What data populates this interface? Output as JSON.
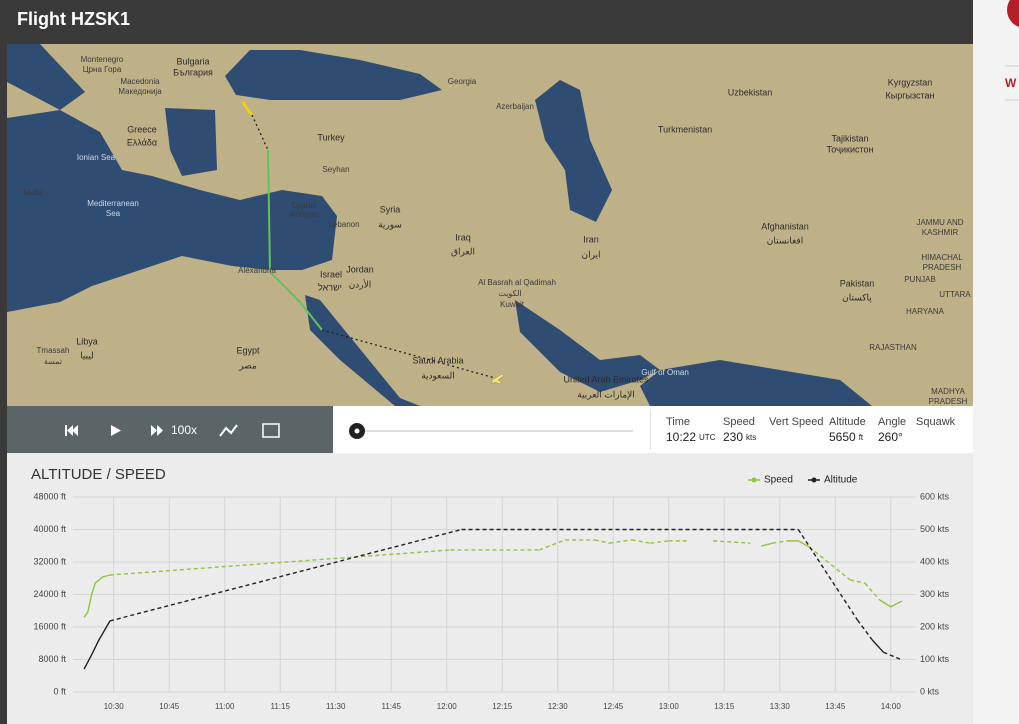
{
  "header": {
    "title": "Flight HZSK1"
  },
  "map": {
    "labels": [
      "Montenegro",
      "Црна Гора",
      "Bulgaria",
      "България",
      "Macedonia",
      "Македонија",
      "Greece",
      "Ελλάδα",
      "Ionian Sea",
      "Malta",
      "Mediterranean",
      "Sea",
      "Turkey",
      "Seyhan",
      "Cyprus",
      "Κύπρος",
      "Lebanon",
      "Syria",
      "سورية",
      "Iraq",
      "العراق",
      "Israel",
      "ישראל",
      "Jordan",
      "الأردن",
      "Georgia",
      "Azerbaijan",
      "Iran",
      "ایران",
      "Al Basrah al Qadimah",
      "الكويت",
      "Kuwait",
      "Turkmenistan",
      "Uzbekistan",
      "Kyrgyzstan",
      "Кыргызстан",
      "Tajikistan",
      "Тоҷикистон",
      "Afghanistan",
      "افغانستان",
      "Pakistan",
      "پاکستان",
      "JAMMU AND",
      "KASHMIR",
      "HIMACHAL",
      "PRADESH",
      "PUNJAB",
      "UTTARA",
      "HARYANA",
      "RAJASTHAN",
      "MADHYA",
      "PRADESH",
      "Libya",
      "ليبيا",
      "Tmassah",
      "تمسة",
      "Egypt",
      "مصر",
      "Alexandria",
      "Saudi Arabia",
      "السعودية",
      "United Arab Emirates",
      "الإمارات العربية",
      "Gulf of Oman"
    ]
  },
  "controls": {
    "speed": "100x"
  },
  "info": {
    "labels": [
      "Time",
      "Speed",
      "Vert Speed",
      "Altitude",
      "Angle",
      "Squawk"
    ],
    "time": "10:22",
    "time_unit": "UTC",
    "speed": 230,
    "speed_unit": "kts",
    "altitude": 5650,
    "altitude_unit": "ft",
    "angle": "260°"
  },
  "side_text": "W",
  "chart_data": {
    "type": "line",
    "title": "ALTITUDE / SPEED",
    "xlim": [
      "10:19",
      "14:06"
    ],
    "xticks": [
      "10:30",
      "10:45",
      "11:00",
      "11:15",
      "11:30",
      "11:45",
      "12:00",
      "12:15",
      "12:30",
      "12:45",
      "13:00",
      "13:15",
      "13:30",
      "13:45",
      "14:00"
    ],
    "ylim": [
      0,
      48000
    ],
    "yticks": [
      {
        "value": 0,
        "label": "0 ft"
      },
      {
        "value": 8000,
        "label": "8000 ft"
      },
      {
        "value": 16000,
        "label": "16000 ft"
      },
      {
        "value": 24000,
        "label": "24000 ft"
      },
      {
        "value": 32000,
        "label": "32000 ft"
      },
      {
        "value": 40000,
        "label": "40000 ft"
      },
      {
        "value": 48000,
        "label": "48000 ft"
      }
    ],
    "y2lim": [
      0,
      600
    ],
    "y2ticks": [
      {
        "value": 0,
        "label": "0 kts"
      },
      {
        "value": 100,
        "label": "100 kts"
      },
      {
        "value": 200,
        "label": "200 kts"
      },
      {
        "value": 300,
        "label": "300 kts"
      },
      {
        "value": 400,
        "label": "400 kts"
      },
      {
        "value": 500,
        "label": "500 kts"
      },
      {
        "value": 600,
        "label": "600 kts"
      }
    ],
    "grid": true,
    "legend": "top-right",
    "series": [
      {
        "name": "Speed",
        "color": "#8dc63f",
        "axis": "y2",
        "x": [
          "10:22",
          "10:23",
          "10:24",
          "10:25",
          "10:27",
          "10:29",
          "12:01",
          "12:25",
          "12:32",
          "12:40",
          "12:44",
          "12:50",
          "12:55",
          "13:00",
          "13:05",
          "13:08",
          "13:12",
          "13:22",
          "13:23",
          "13:25",
          "13:28",
          "13:32",
          "13:35",
          "13:38",
          "13:49",
          "13:53",
          "13:57",
          "14:00",
          "14:03"
        ],
        "values": [
          230,
          246,
          298,
          335,
          354,
          360,
          437,
          437,
          468,
          468,
          458,
          468,
          458,
          465,
          465,
          null,
          465,
          458,
          null,
          449,
          458,
          465,
          465,
          446,
          345,
          335,
          283,
          262,
          280
        ]
      },
      {
        "name": "Altitude",
        "color": "#222222",
        "x": [
          "10:22",
          "10:24",
          "10:26",
          "10:29",
          "12:04",
          "13:35",
          "13:51",
          "13:55",
          "13:58",
          "14:03"
        ],
        "values": [
          5650,
          9100,
          12800,
          17500,
          40000,
          40000,
          17700,
          12800,
          9800,
          7900
        ]
      }
    ]
  }
}
